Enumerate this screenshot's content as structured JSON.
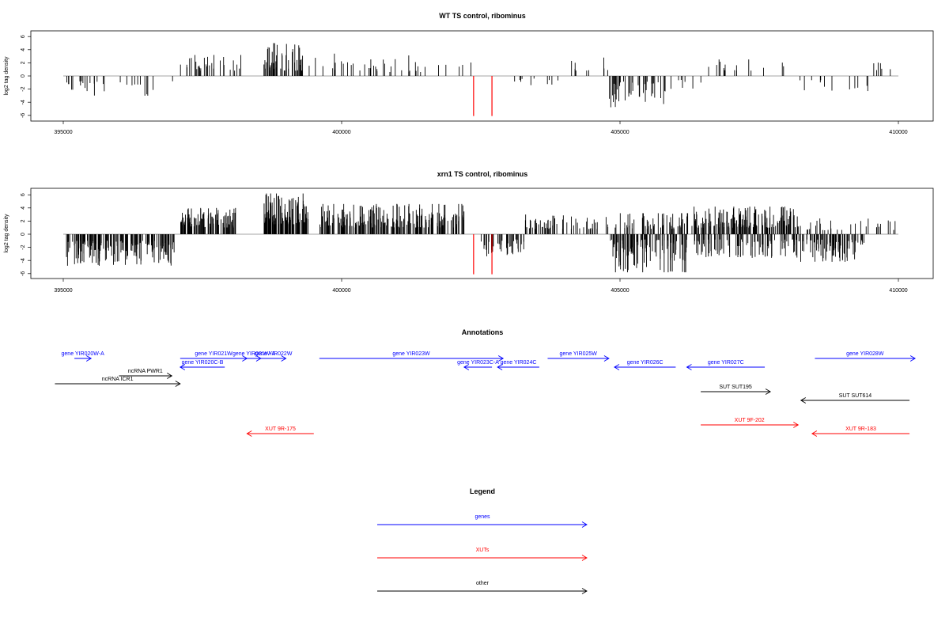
{
  "chart_data": [
    {
      "type": "bar",
      "title": "WT TS control, ribominus",
      "xlabel": "",
      "ylabel": "log2 tag density",
      "xlim": [
        395000,
        410000
      ],
      "ylim": [
        -6,
        6
      ],
      "xticks": [
        "395000",
        "400000",
        "405000",
        "410000"
      ],
      "yticks": [
        "-6",
        "-4",
        "-2",
        "0",
        "2",
        "4",
        "6"
      ],
      "segments": [
        {
          "x0": 395000,
          "x1": 397000,
          "n": 28,
          "sign": -1,
          "min": 0.8,
          "max": 3.0,
          "seed": 11
        },
        {
          "x0": 397100,
          "x1": 398200,
          "n": 30,
          "sign": 1,
          "min": 0.8,
          "max": 3.2,
          "seed": 12
        },
        {
          "x0": 398600,
          "x1": 399300,
          "n": 55,
          "sign": 1,
          "min": 0.8,
          "max": 5.0,
          "seed": 13
        },
        {
          "x0": 399400,
          "x1": 402600,
          "n": 40,
          "sign": 1,
          "min": 0.6,
          "max": 3.4,
          "seed": 14
        },
        {
          "x0": 403000,
          "x1": 403900,
          "n": 10,
          "sign": -1,
          "min": 0.4,
          "max": 1.4,
          "seed": 15
        },
        {
          "x0": 404000,
          "x1": 404800,
          "n": 10,
          "sign": 1,
          "min": 0.8,
          "max": 2.8,
          "seed": 16
        },
        {
          "x0": 404800,
          "x1": 406000,
          "n": 40,
          "sign": -1,
          "min": 0.8,
          "max": 4.8,
          "seed": 17
        },
        {
          "x0": 406000,
          "x1": 406500,
          "n": 6,
          "sign": -1,
          "min": 0.6,
          "max": 2.0,
          "seed": 18
        },
        {
          "x0": 406500,
          "x1": 408100,
          "n": 16,
          "sign": 1,
          "min": 0.8,
          "max": 2.6,
          "seed": 19
        },
        {
          "x0": 408100,
          "x1": 409500,
          "n": 12,
          "sign": -1,
          "min": 0.6,
          "max": 2.4,
          "seed": 20
        },
        {
          "x0": 409500,
          "x1": 409950,
          "n": 6,
          "sign": 1,
          "min": 0.8,
          "max": 2.2,
          "seed": 21
        }
      ],
      "highlights": [
        {
          "x": 402370,
          "value": -6.1,
          "color": "#ff0000"
        },
        {
          "x": 402700,
          "value": -6.1,
          "color": "#ff0000"
        }
      ]
    },
    {
      "type": "bar",
      "title": "xrn1 TS control, ribominus",
      "xlabel": "",
      "ylabel": "log2 tag density",
      "xlim": [
        395000,
        410000
      ],
      "ylim": [
        -6,
        6
      ],
      "xticks": [
        "395000",
        "400000",
        "405000",
        "410000"
      ],
      "yticks": [
        "-6",
        "-4",
        "-2",
        "0",
        "2",
        "4",
        "6"
      ],
      "segments": [
        {
          "x0": 395050,
          "x1": 397000,
          "n": 170,
          "sign": -1,
          "min": 1.0,
          "max": 4.8,
          "seed": 31
        },
        {
          "x0": 397100,
          "x1": 398100,
          "n": 110,
          "sign": 1,
          "min": 1.0,
          "max": 4.0,
          "seed": 32
        },
        {
          "x0": 398600,
          "x1": 399400,
          "n": 120,
          "sign": 1,
          "min": 1.5,
          "max": 6.2,
          "seed": 33
        },
        {
          "x0": 399600,
          "x1": 402200,
          "n": 220,
          "sign": 1,
          "min": 1.0,
          "max": 4.6,
          "seed": 34
        },
        {
          "x0": 402500,
          "x1": 403300,
          "n": 40,
          "sign": -1,
          "min": 0.8,
          "max": 3.4,
          "seed": 35
        },
        {
          "x0": 403300,
          "x1": 404800,
          "n": 60,
          "sign": 1,
          "min": 0.8,
          "max": 3.0,
          "seed": 36
        },
        {
          "x0": 404800,
          "x1": 406200,
          "n": 110,
          "sign": -1,
          "min": 0.8,
          "max": 5.8,
          "seed": 37
        },
        {
          "x0": 404900,
          "x1": 406300,
          "n": 60,
          "sign": 1,
          "min": 0.8,
          "max": 3.2,
          "seed": 38
        },
        {
          "x0": 406300,
          "x1": 408200,
          "n": 160,
          "sign": 1,
          "min": 1.0,
          "max": 4.2,
          "seed": 39
        },
        {
          "x0": 406300,
          "x1": 408200,
          "n": 90,
          "sign": -1,
          "min": 0.8,
          "max": 3.6,
          "seed": 40
        },
        {
          "x0": 408200,
          "x1": 409400,
          "n": 80,
          "sign": -1,
          "min": 0.8,
          "max": 4.2,
          "seed": 41
        },
        {
          "x0": 408200,
          "x1": 409950,
          "n": 30,
          "sign": 1,
          "min": 0.6,
          "max": 2.4,
          "seed": 42
        }
      ],
      "highlights": [
        {
          "x": 402370,
          "value": -6.1,
          "color": "#ff0000"
        },
        {
          "x": 402700,
          "value": -6.1,
          "color": "#ff0000"
        }
      ]
    }
  ],
  "annotations": {
    "title": "Annotations",
    "xlim": [
      395000,
      410000
    ],
    "items": [
      {
        "label": "gene YIR020W-A",
        "start": 395200,
        "end": 395500,
        "row": 0,
        "strand": "+",
        "color": "#0000ff"
      },
      {
        "label": "gene YIR020C-B",
        "start": 397100,
        "end": 397900,
        "row": 1,
        "strand": "-",
        "color": "#0000ff"
      },
      {
        "label": "gene YIR021W",
        "start": 397100,
        "end": 398300,
        "row": 0,
        "strand": "+",
        "color": "#0000ff"
      },
      {
        "label": "gene YIR021W-A",
        "start": 398300,
        "end": 398550,
        "row": 0,
        "strand": "+",
        "color": "#0000ff"
      },
      {
        "label": "gene YIR022W",
        "start": 398550,
        "end": 399000,
        "row": 0,
        "strand": "+",
        "color": "#0000ff"
      },
      {
        "label": "gene YIR023W",
        "start": 399600,
        "end": 402900,
        "row": 0,
        "strand": "+",
        "color": "#0000ff"
      },
      {
        "label": "gene YIR023C-A",
        "start": 402200,
        "end": 402700,
        "row": 1,
        "strand": "-",
        "color": "#0000ff"
      },
      {
        "label": "gene YIR024C",
        "start": 402800,
        "end": 403550,
        "row": 1,
        "strand": "-",
        "color": "#0000ff"
      },
      {
        "label": "gene YIR025W",
        "start": 403700,
        "end": 404800,
        "row": 0,
        "strand": "+",
        "color": "#0000ff"
      },
      {
        "label": "gene YIR026C",
        "start": 404900,
        "end": 406000,
        "row": 1,
        "strand": "-",
        "color": "#0000ff"
      },
      {
        "label": "gene YIR027C",
        "start": 406200,
        "end": 407600,
        "row": 1,
        "strand": "-",
        "color": "#0000ff"
      },
      {
        "label": "gene YIR028W",
        "start": 408500,
        "end": 410300,
        "row": 0,
        "strand": "+",
        "color": "#0000ff"
      },
      {
        "label": "ncRNA PWR1",
        "start": 396000,
        "end": 396950,
        "row": 2,
        "strand": "+",
        "color": "#000000"
      },
      {
        "label": "ncRNA ICR1",
        "start": 394850,
        "end": 397100,
        "row": 3,
        "strand": "+",
        "color": "#000000"
      },
      {
        "label": "SUT SUT195",
        "start": 406450,
        "end": 407700,
        "row": 4,
        "strand": "+",
        "color": "#000000"
      },
      {
        "label": "SUT SUT614",
        "start": 408250,
        "end": 410200,
        "row": 5,
        "strand": "-",
        "color": "#000000"
      },
      {
        "label": "XUT 9F-202",
        "start": 406450,
        "end": 408200,
        "row": 7,
        "strand": "+",
        "color": "#ff0000"
      },
      {
        "label": "XUT 9R-175",
        "start": 398300,
        "end": 399500,
        "row": 8,
        "strand": "-",
        "color": "#ff0000"
      },
      {
        "label": "XUT 9R-183",
        "start": 408450,
        "end": 410200,
        "row": 8,
        "strand": "-",
        "color": "#ff0000"
      }
    ]
  },
  "legend": {
    "title": "Legend",
    "items": [
      {
        "label": "genes",
        "color": "#0000ff"
      },
      {
        "label": "XUTs",
        "color": "#ff0000"
      },
      {
        "label": "other",
        "color": "#000000"
      }
    ]
  }
}
